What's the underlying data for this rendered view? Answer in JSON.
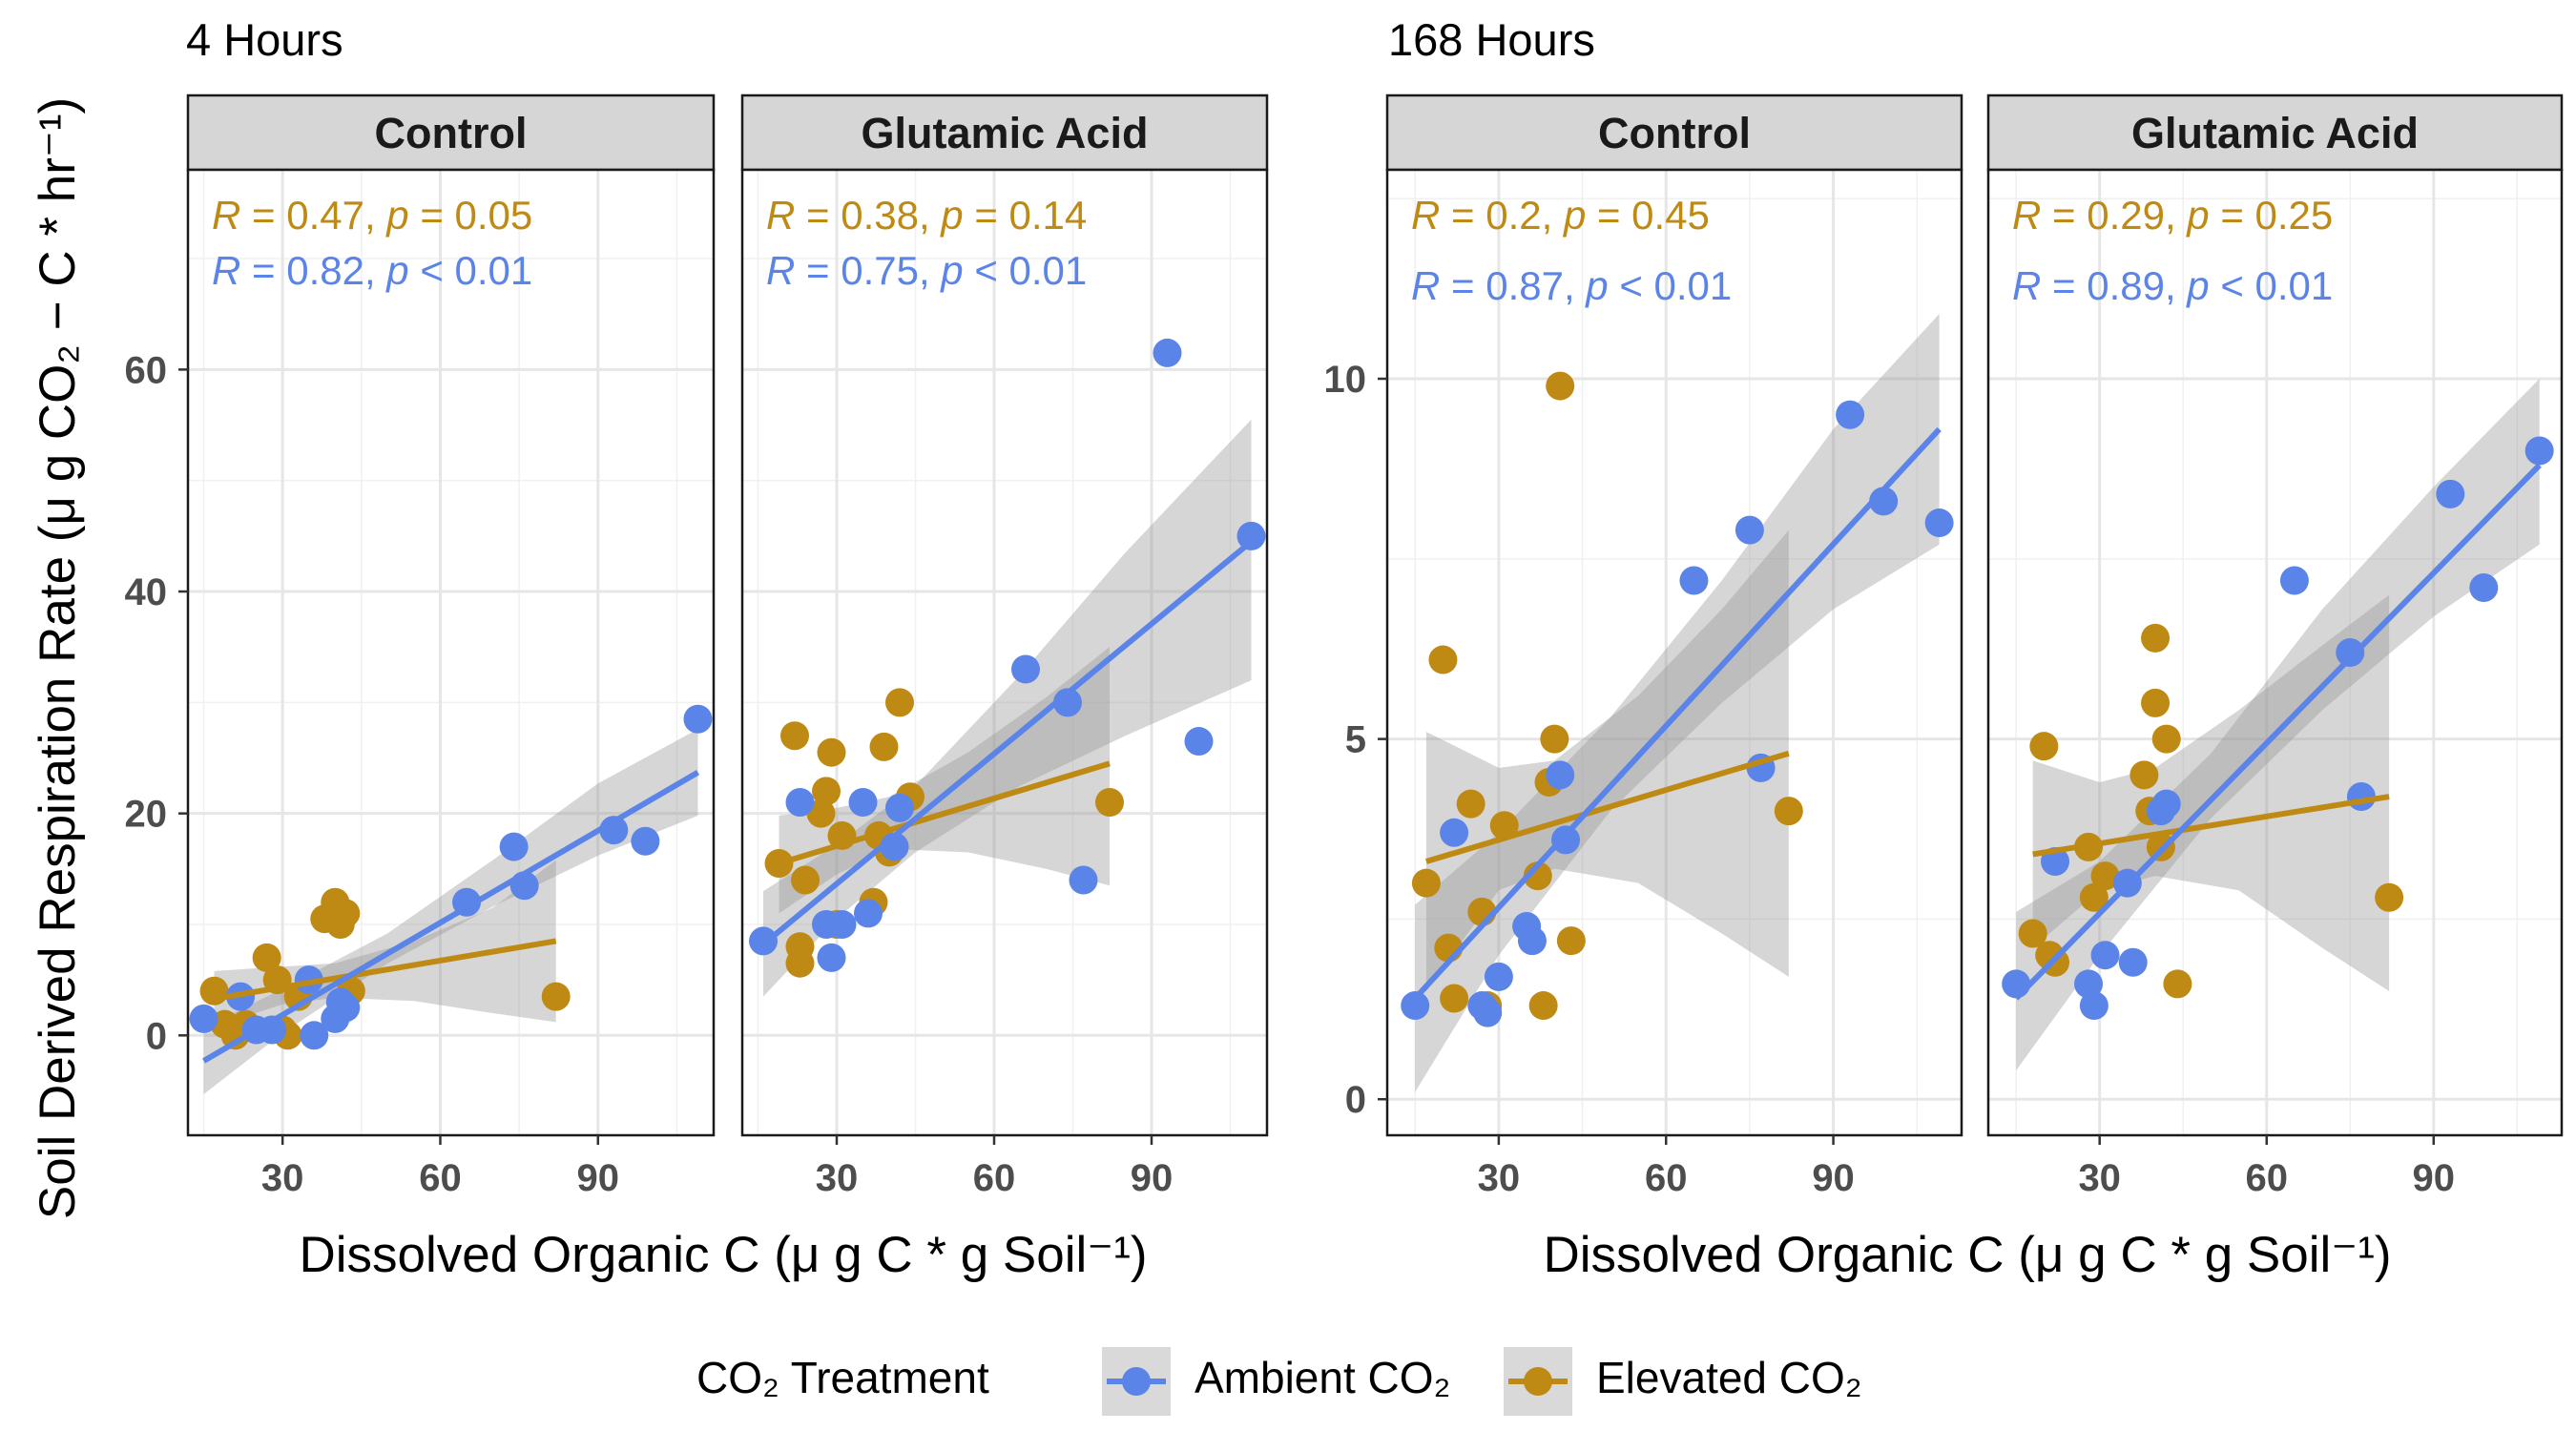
{
  "colors": {
    "ambient": "#5B84E8",
    "elevated": "#BE8A14",
    "band": "#999999",
    "strip_fill": "#D6D6D6",
    "grid": "#E6E6E6"
  },
  "y_axis_label": "Soil Derived Respiration Rate",
  "y_axis_unit": "μ g CO₂ − C * hr⁻¹",
  "x_axis_label": "Dissolved Organic C",
  "x_axis_unit": "μ g C * g Soil⁻¹",
  "legend": {
    "title": "CO₂ Treatment",
    "items": [
      "Ambient CO₂",
      "Elevated CO₂"
    ]
  },
  "chart_data": [
    {
      "type": "scatter",
      "title": "4 Hours",
      "xlabel": "Dissolved Organic C (μ g C * g Soil⁻¹)",
      "ylabel": "Soil Derived Respiration Rate (μ g CO₂ − C * hr⁻¹)",
      "xlim": [
        12,
        112
      ],
      "ylim": [
        -9,
        78
      ],
      "x_ticks": [
        30,
        60,
        90
      ],
      "y_ticks": [
        0,
        20,
        40,
        60
      ],
      "facets": [
        {
          "strip": "Control",
          "stats": [
            {
              "series": "Elevated CO₂",
              "R": "0.47",
              "p": "= 0.05"
            },
            {
              "series": "Ambient CO₂",
              "R": "0.82",
              "p": "< 0.01"
            }
          ],
          "series": [
            {
              "name": "Ambient CO₂",
              "x": [
                15,
                22,
                25,
                28,
                35,
                36,
                40,
                41,
                42,
                65,
                74,
                76,
                93,
                99,
                109
              ],
              "y": [
                1.5,
                3.5,
                0.5,
                0.5,
                5,
                0,
                1.5,
                3,
                2.5,
                12,
                17,
                13.5,
                18.5,
                17.5,
                28.5
              ],
              "fit": [
                [
                  15,
                  -2.3
                ],
                [
                  109,
                  23.7
                ]
              ],
              "band": [
                [
                  15,
                  -5.3,
                  0.7
                ],
                [
                  30,
                  0.2,
                  4.2
                ],
                [
                  50,
                  6.5,
                  9.2
                ],
                [
                  70,
                  11.6,
                  15.8
                ],
                [
                  90,
                  16.2,
                  22.7
                ],
                [
                  109,
                  19.8,
                  27.6
                ]
              ]
            },
            {
              "name": "Elevated CO₂",
              "x": [
                17,
                19,
                21,
                23,
                27,
                29,
                30,
                31,
                33,
                38,
                40,
                41,
                42,
                43,
                82
              ],
              "y": [
                4,
                1,
                0,
                1,
                7,
                5,
                0.5,
                0,
                3.5,
                10.5,
                12,
                10,
                11,
                4,
                3.5
              ],
              "fit": [
                [
                  17,
                  3.3
                ],
                [
                  82,
                  8.5
                ]
              ],
              "band": [
                [
                  17,
                  0.8,
                  5.8
                ],
                [
                  30,
                  2.8,
                  6.2
                ],
                [
                  40,
                  3.4,
                  6.5
                ],
                [
                  55,
                  3.1,
                  8.5
                ],
                [
                  70,
                  2.0,
                  11.5
                ],
                [
                  82,
                  1.2,
                  15.8
                ]
              ]
            }
          ]
        },
        {
          "strip": "Glutamic Acid",
          "stats": [
            {
              "series": "Elevated CO₂",
              "R": "0.38",
              "p": "= 0.14"
            },
            {
              "series": "Ambient CO₂",
              "R": "0.75",
              "p": "< 0.01"
            }
          ],
          "series": [
            {
              "name": "Ambient CO₂",
              "x": [
                16,
                23,
                28,
                29,
                31,
                35,
                36,
                41,
                42,
                66,
                74,
                77,
                93,
                99,
                109
              ],
              "y": [
                8.5,
                21,
                10,
                7,
                10,
                21,
                11,
                17,
                20.5,
                33,
                30,
                14,
                61.5,
                26.5,
                45
              ],
              "fit": [
                [
                  16,
                  8.2
                ],
                [
                  109,
                  44.5
                ]
              ],
              "band": [
                [
                  16,
                  3.5,
                  13.0
                ],
                [
                  30,
                  10.5,
                  17.2
                ],
                [
                  45,
                  16.5,
                  22.5
                ],
                [
                  65,
                  22.5,
                  32.5
                ],
                [
                  85,
                  27.0,
                  43.5
                ],
                [
                  109,
                  32.0,
                  55.5
                ]
              ]
            },
            {
              "name": "Elevated CO₂",
              "x": [
                19,
                22,
                23,
                23,
                24,
                27,
                28,
                29,
                30,
                31,
                37,
                38,
                39,
                40,
                41,
                42,
                44,
                82
              ],
              "y": [
                15.5,
                27,
                8,
                6.5,
                14,
                20,
                22,
                25.5,
                10,
                18,
                12,
                18,
                26,
                16.5,
                17,
                30,
                21.5,
                21
              ],
              "fit": [
                [
                  19,
                  15.5
                ],
                [
                  82,
                  24.5
                ]
              ],
              "band": [
                [
                  19,
                  11.0,
                  19.8
                ],
                [
                  30,
                  14.5,
                  20.5
                ],
                [
                  40,
                  16.8,
                  21.5
                ],
                [
                  55,
                  16.5,
                  25.5
                ],
                [
                  70,
                  15.0,
                  30.5
                ],
                [
                  82,
                  13.5,
                  35.0
                ]
              ]
            }
          ]
        }
      ]
    },
    {
      "type": "scatter",
      "title": "168 Hours",
      "xlabel": "Dissolved Organic C (μ g C * g Soil⁻¹)",
      "ylabel": "Soil Derived Respiration Rate (μ g CO₂ − C * hr⁻¹)",
      "xlim": [
        10,
        113
      ],
      "ylim": [
        -0.5,
        12.9
      ],
      "x_ticks": [
        30,
        60,
        90
      ],
      "y_ticks": [
        0,
        5,
        10
      ],
      "facets": [
        {
          "strip": "Control",
          "stats": [
            {
              "series": "Elevated CO₂",
              "R": "0.2",
              "p": "= 0.45"
            },
            {
              "series": "Ambient CO₂",
              "R": "0.87",
              "p": "< 0.01"
            }
          ],
          "series": [
            {
              "name": "Ambient CO₂",
              "x": [
                15,
                22,
                27,
                28,
                30,
                35,
                36,
                41,
                42,
                65,
                75,
                77,
                93,
                99,
                109
              ],
              "y": [
                1.3,
                3.7,
                1.3,
                1.2,
                1.7,
                2.4,
                2.2,
                4.5,
                3.6,
                7.2,
                7.9,
                4.6,
                9.5,
                8.3,
                8.0
              ],
              "fit": [
                [
                  15,
                  1.4
                ],
                [
                  109,
                  9.3
                ]
              ],
              "band": [
                [
                  15,
                  0.1,
                  2.7
                ],
                [
                  30,
                  2.0,
                  3.7
                ],
                [
                  50,
                  4.0,
                  5.3
                ],
                [
                  70,
                  5.5,
                  7.2
                ],
                [
                  90,
                  6.8,
                  9.3
                ],
                [
                  109,
                  7.7,
                  10.9
                ]
              ]
            },
            {
              "name": "Elevated CO₂",
              "x": [
                17,
                20,
                21,
                22,
                25,
                27,
                28,
                31,
                37,
                38,
                39,
                40,
                41,
                43,
                82
              ],
              "y": [
                3.0,
                6.1,
                2.1,
                1.4,
                4.1,
                2.6,
                1.3,
                3.8,
                3.1,
                1.3,
                4.4,
                5.0,
                9.9,
                2.2,
                4.0
              ],
              "fit": [
                [
                  17,
                  3.3
                ],
                [
                  82,
                  4.8
                ]
              ],
              "band": [
                [
                  17,
                  1.5,
                  5.1
                ],
                [
                  30,
                  2.9,
                  4.6
                ],
                [
                  40,
                  3.2,
                  4.7
                ],
                [
                  55,
                  3.0,
                  5.6
                ],
                [
                  70,
                  2.3,
                  6.8
                ],
                [
                  82,
                  1.7,
                  7.9
                ]
              ]
            }
          ]
        },
        {
          "strip": "Glutamic Acid",
          "stats": [
            {
              "series": "Elevated CO₂",
              "R": "0.29",
              "p": "= 0.25"
            },
            {
              "series": "Ambient CO₂",
              "R": "0.89",
              "p": "< 0.01"
            }
          ],
          "series": [
            {
              "name": "Ambient CO₂",
              "x": [
                15,
                22,
                28,
                29,
                31,
                35,
                36,
                41,
                42,
                65,
                75,
                77,
                93,
                99,
                109
              ],
              "y": [
                1.6,
                3.3,
                1.6,
                1.3,
                2.0,
                3.0,
                1.9,
                4.0,
                4.1,
                7.2,
                6.2,
                4.2,
                8.4,
                7.1,
                9.0
              ],
              "fit": [
                [
                  15,
                  1.4
                ],
                [
                  109,
                  8.8
                ]
              ],
              "band": [
                [
                  15,
                  0.4,
                  2.6
                ],
                [
                  30,
                  2.0,
                  3.3
                ],
                [
                  50,
                  3.9,
                  4.8
                ],
                [
                  70,
                  5.4,
                  6.8
                ],
                [
                  90,
                  6.7,
                  8.5
                ],
                [
                  109,
                  7.7,
                  10.0
                ]
              ]
            },
            {
              "name": "Elevated CO₂",
              "x": [
                18,
                20,
                21,
                22,
                28,
                29,
                31,
                38,
                39,
                40,
                40,
                41,
                42,
                44,
                82
              ],
              "y": [
                2.3,
                4.9,
                2.0,
                1.9,
                3.5,
                2.8,
                3.1,
                4.5,
                4.0,
                5.5,
                6.4,
                3.5,
                5.0,
                1.6,
                2.8
              ],
              "fit": [
                [
                  18,
                  3.4
                ],
                [
                  82,
                  4.2
                ]
              ],
              "band": [
                [
                  18,
                  2.1,
                  4.7
                ],
                [
                  30,
                  2.9,
                  4.4
                ],
                [
                  40,
                  3.1,
                  4.6
                ],
                [
                  55,
                  2.9,
                  5.4
                ],
                [
                  70,
                  2.1,
                  6.3
                ],
                [
                  82,
                  1.5,
                  7.0
                ]
              ]
            }
          ]
        }
      ]
    }
  ]
}
